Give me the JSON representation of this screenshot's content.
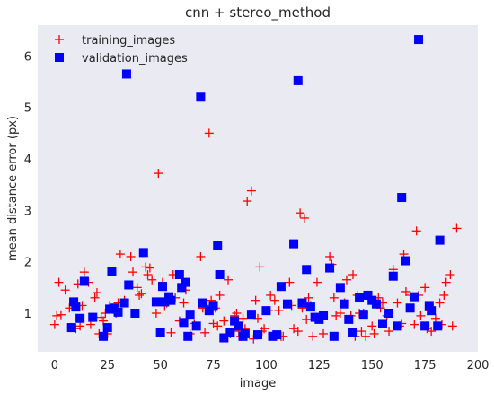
{
  "chart_data": {
    "type": "scatter",
    "title": "cnn + stereo_method",
    "xlabel": "image",
    "ylabel": "mean distance error (px)",
    "xlim": [
      -8,
      200
    ],
    "ylim": [
      0.25,
      6.6
    ],
    "xticks": [
      0,
      25,
      50,
      75,
      100,
      125,
      150,
      175,
      200
    ],
    "yticks": [
      1,
      2,
      3,
      4,
      5,
      6
    ],
    "grid": false,
    "background": "#eaeaf2",
    "legend_position": "top-left",
    "series": [
      {
        "name": "training_images",
        "marker": "plus",
        "color": "#ff0000",
        "points": [
          [
            0,
            0.78
          ],
          [
            1,
            0.95
          ],
          [
            2,
            1.6
          ],
          [
            3,
            0.97
          ],
          [
            5,
            1.45
          ],
          [
            7,
            1.1
          ],
          [
            8,
            0.72
          ],
          [
            10,
            0.7
          ],
          [
            11,
            1.57
          ],
          [
            12,
            0.75
          ],
          [
            13,
            1.15
          ],
          [
            14,
            1.8
          ],
          [
            16,
            1.6
          ],
          [
            17,
            0.78
          ],
          [
            19,
            1.3
          ],
          [
            20,
            1.4
          ],
          [
            21,
            0.6
          ],
          [
            22,
            0.92
          ],
          [
            23,
            0.85
          ],
          [
            24,
            1.0
          ],
          [
            25,
            0.6
          ],
          [
            26,
            1.15
          ],
          [
            29,
            1.0
          ],
          [
            30,
            1.2
          ],
          [
            31,
            2.15
          ],
          [
            33,
            1.25
          ],
          [
            36,
            2.1
          ],
          [
            37,
            1.8
          ],
          [
            39,
            1.5
          ],
          [
            40,
            1.35
          ],
          [
            41,
            1.38
          ],
          [
            43,
            1.9
          ],
          [
            44,
            1.75
          ],
          [
            45,
            1.88
          ],
          [
            46,
            1.65
          ],
          [
            48,
            1.0
          ],
          [
            49,
            3.72
          ],
          [
            51,
            1.6
          ],
          [
            52,
            1.15
          ],
          [
            53,
            1.2
          ],
          [
            55,
            0.62
          ],
          [
            56,
            1.75
          ],
          [
            57,
            1.3
          ],
          [
            59,
            0.85
          ],
          [
            61,
            1.2
          ],
          [
            62,
            1.45
          ],
          [
            64,
            0.6
          ],
          [
            66,
            0.8
          ],
          [
            69,
            2.1
          ],
          [
            70,
            1.1
          ],
          [
            71,
            0.62
          ],
          [
            72,
            1.15
          ],
          [
            73,
            4.5
          ],
          [
            74,
            1.25
          ],
          [
            75,
            0.8
          ],
          [
            76,
            1.1
          ],
          [
            77,
            0.75
          ],
          [
            78,
            1.35
          ],
          [
            80,
            0.85
          ],
          [
            82,
            1.65
          ],
          [
            83,
            0.6
          ],
          [
            85,
            0.95
          ],
          [
            86,
            1.0
          ],
          [
            87,
            0.65
          ],
          [
            88,
            0.55
          ],
          [
            89,
            0.9
          ],
          [
            90,
            0.7
          ],
          [
            91,
            3.18
          ],
          [
            93,
            3.38
          ],
          [
            94,
            0.5
          ],
          [
            95,
            1.25
          ],
          [
            96,
            0.9
          ],
          [
            97,
            1.9
          ],
          [
            98,
            0.65
          ],
          [
            99,
            0.7
          ],
          [
            101,
            1.05
          ],
          [
            102,
            1.35
          ],
          [
            104,
            1.25
          ],
          [
            106,
            1.05
          ],
          [
            107,
            0.55
          ],
          [
            108,
            0.55
          ],
          [
            111,
            1.6
          ],
          [
            112,
            1.15
          ],
          [
            113,
            0.7
          ],
          [
            115,
            0.65
          ],
          [
            116,
            2.95
          ],
          [
            117,
            1.1
          ],
          [
            118,
            2.85
          ],
          [
            119,
            0.88
          ],
          [
            120,
            1.3
          ],
          [
            121,
            1.15
          ],
          [
            122,
            0.55
          ],
          [
            124,
            1.6
          ],
          [
            127,
            0.6
          ],
          [
            130,
            2.1
          ],
          [
            131,
            1.95
          ],
          [
            132,
            1.3
          ],
          [
            133,
            0.95
          ],
          [
            135,
            1.0
          ],
          [
            137,
            1.2
          ],
          [
            138,
            1.65
          ],
          [
            140,
            0.95
          ],
          [
            141,
            1.75
          ],
          [
            142,
            0.55
          ],
          [
            143,
            1.35
          ],
          [
            144,
            1.0
          ],
          [
            145,
            0.65
          ],
          [
            146,
            1.0
          ],
          [
            147,
            0.55
          ],
          [
            148,
            1.35
          ],
          [
            150,
            0.75
          ],
          [
            151,
            0.6
          ],
          [
            153,
            1.3
          ],
          [
            154,
            1.1
          ],
          [
            155,
            1.2
          ],
          [
            157,
            0.95
          ],
          [
            158,
            0.65
          ],
          [
            160,
            1.85
          ],
          [
            162,
            1.2
          ],
          [
            163,
            0.75
          ],
          [
            164,
            0.8
          ],
          [
            165,
            2.15
          ],
          [
            166,
            1.42
          ],
          [
            168,
            1.35
          ],
          [
            170,
            0.78
          ],
          [
            171,
            2.6
          ],
          [
            172,
            1.35
          ],
          [
            173,
            0.95
          ],
          [
            175,
            1.5
          ],
          [
            176,
            0.7
          ],
          [
            177,
            1.05
          ],
          [
            178,
            0.65
          ],
          [
            180,
            0.9
          ],
          [
            182,
            1.2
          ],
          [
            183,
            0.78
          ],
          [
            184,
            1.35
          ],
          [
            185,
            1.6
          ],
          [
            187,
            1.75
          ],
          [
            188,
            0.75
          ],
          [
            190,
            2.65
          ]
        ]
      },
      {
        "name": "validation_images",
        "marker": "square",
        "color": "#0000ff",
        "points": [
          [
            8,
            0.72
          ],
          [
            9,
            1.22
          ],
          [
            10,
            1.12
          ],
          [
            12,
            0.9
          ],
          [
            14,
            1.62
          ],
          [
            18,
            0.92
          ],
          [
            23,
            0.55
          ],
          [
            25,
            0.72
          ],
          [
            26,
            1.08
          ],
          [
            27,
            1.82
          ],
          [
            28,
            1.1
          ],
          [
            30,
            1.02
          ],
          [
            33,
            1.2
          ],
          [
            34,
            5.65
          ],
          [
            35,
            1.55
          ],
          [
            38,
            1.0
          ],
          [
            42,
            2.18
          ],
          [
            48,
            1.22
          ],
          [
            50,
            0.62
          ],
          [
            51,
            1.52
          ],
          [
            52,
            1.22
          ],
          [
            54,
            1.32
          ],
          [
            55,
            1.25
          ],
          [
            59,
            1.75
          ],
          [
            60,
            1.5
          ],
          [
            61,
            0.82
          ],
          [
            62,
            1.6
          ],
          [
            63,
            0.55
          ],
          [
            64,
            0.98
          ],
          [
            67,
            0.75
          ],
          [
            69,
            5.2
          ],
          [
            70,
            1.2
          ],
          [
            73,
            1.05
          ],
          [
            75,
            1.15
          ],
          [
            77,
            2.32
          ],
          [
            78,
            1.75
          ],
          [
            80,
            0.52
          ],
          [
            83,
            0.62
          ],
          [
            85,
            0.85
          ],
          [
            87,
            0.75
          ],
          [
            89,
            0.55
          ],
          [
            90,
            0.6
          ],
          [
            93,
            0.98
          ],
          [
            96,
            0.58
          ],
          [
            100,
            1.05
          ],
          [
            103,
            0.55
          ],
          [
            105,
            0.58
          ],
          [
            107,
            1.52
          ],
          [
            110,
            1.18
          ],
          [
            113,
            2.35
          ],
          [
            115,
            5.52
          ],
          [
            117,
            1.2
          ],
          [
            119,
            1.85
          ],
          [
            121,
            1.12
          ],
          [
            123,
            0.92
          ],
          [
            125,
            0.88
          ],
          [
            127,
            0.95
          ],
          [
            130,
            1.88
          ],
          [
            132,
            0.55
          ],
          [
            135,
            1.5
          ],
          [
            137,
            1.18
          ],
          [
            139,
            0.88
          ],
          [
            141,
            0.62
          ],
          [
            144,
            1.3
          ],
          [
            146,
            0.98
          ],
          [
            148,
            1.35
          ],
          [
            150,
            1.25
          ],
          [
            152,
            1.18
          ],
          [
            155,
            0.8
          ],
          [
            158,
            1.0
          ],
          [
            160,
            1.72
          ],
          [
            162,
            0.75
          ],
          [
            164,
            3.25
          ],
          [
            166,
            2.02
          ],
          [
            168,
            1.1
          ],
          [
            170,
            1.32
          ],
          [
            172,
            6.32
          ],
          [
            175,
            0.75
          ],
          [
            177,
            1.15
          ],
          [
            178,
            1.05
          ],
          [
            181,
            0.75
          ],
          [
            182,
            2.42
          ]
        ]
      }
    ]
  }
}
